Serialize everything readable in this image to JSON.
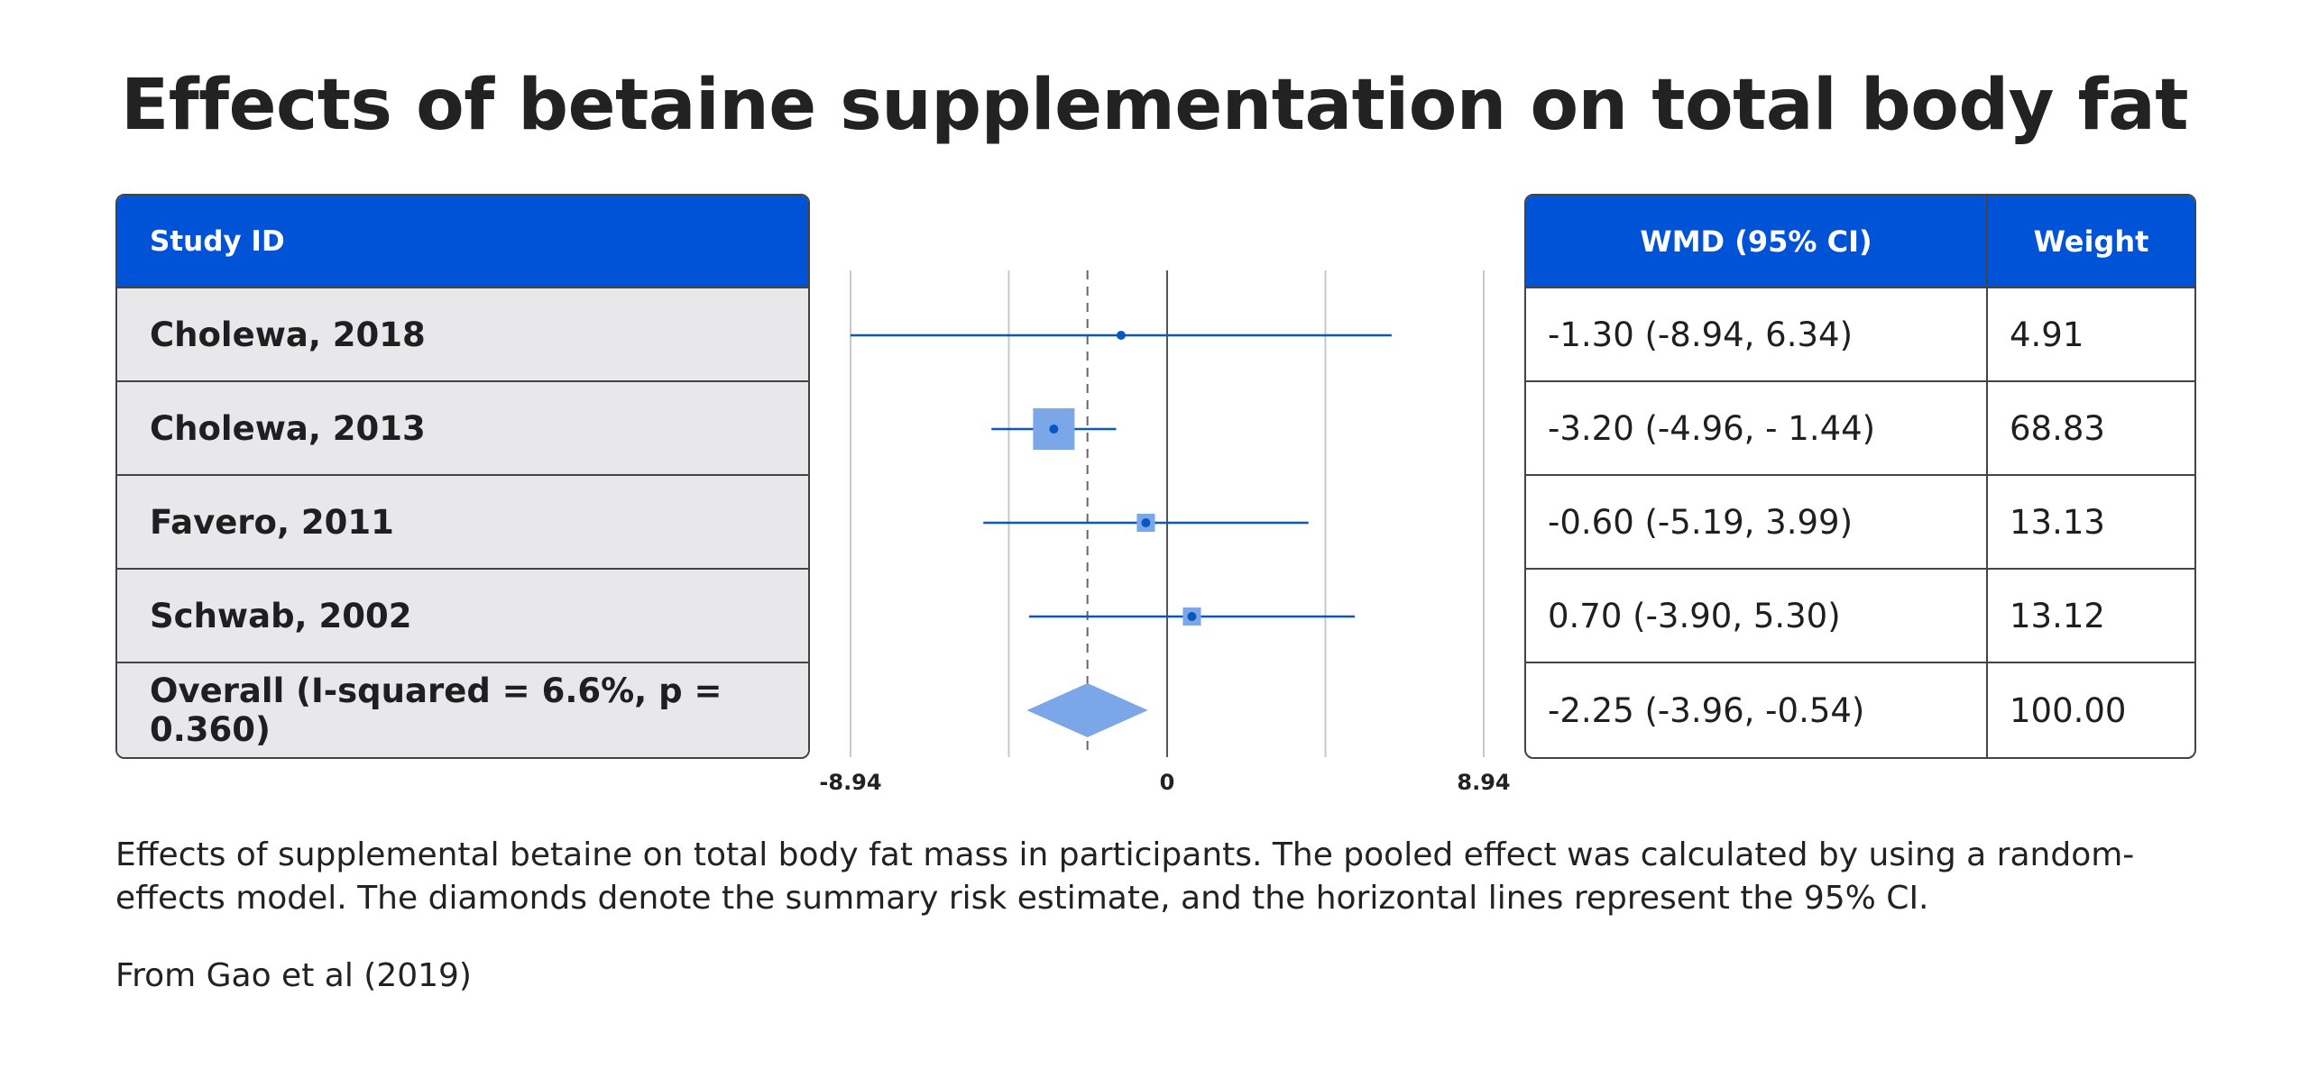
{
  "title": "Effects of betaine supplementation on total body fat",
  "left_header": "Study ID",
  "right_header": {
    "wmd": "WMD (95% CI)",
    "weight": "Weight"
  },
  "caption": "Effects of supplemental betaine on total body fat mass in participants. The pooled effect was calculated by using a random-effects model. The diamonds denote the summary risk estimate, and the horizontal lines represent the 95% CI.",
  "source": "From Gao et al (2019)",
  "colors": {
    "header_bg": "#0052d6",
    "ci_line": "#0a56c2",
    "marker": "#7ba6e8",
    "row_bg": "#e8e8ea"
  },
  "chart_data": {
    "type": "forest",
    "x_ticks": [
      "-8.94",
      "0",
      "8.94"
    ],
    "xlim": [
      -8.94,
      8.94
    ],
    "reference_line": 0,
    "pooled_line": -2.25,
    "studies": [
      {
        "label": "Cholewa, 2018",
        "wmd": -1.3,
        "lower": -8.94,
        "upper": 6.34,
        "weight": 4.91,
        "ci_text": "-1.30 (-8.94, 6.34)",
        "weight_text": "4.91"
      },
      {
        "label": "Cholewa, 2013",
        "wmd": -3.2,
        "lower": -4.96,
        "upper": -1.44,
        "weight": 68.83,
        "ci_text": "-3.20 (-4.96, - 1.44)",
        "weight_text": "68.83"
      },
      {
        "label": "Favero, 2011",
        "wmd": -0.6,
        "lower": -5.19,
        "upper": 3.99,
        "weight": 13.13,
        "ci_text": "-0.60 (-5.19, 3.99)",
        "weight_text": "13.13"
      },
      {
        "label": "Schwab, 2002",
        "wmd": 0.7,
        "lower": -3.9,
        "upper": 5.3,
        "weight": 13.12,
        "ci_text": "0.70 (-3.90, 5.30)",
        "weight_text": "13.12"
      }
    ],
    "overall": {
      "label": "Overall (I-squared = 6.6%, p = 0.360)",
      "wmd": -2.25,
      "lower": -3.96,
      "upper": -0.54,
      "weight": 100.0,
      "ci_text": "-2.25 (-3.96, -0.54)",
      "weight_text": "100.00"
    }
  }
}
